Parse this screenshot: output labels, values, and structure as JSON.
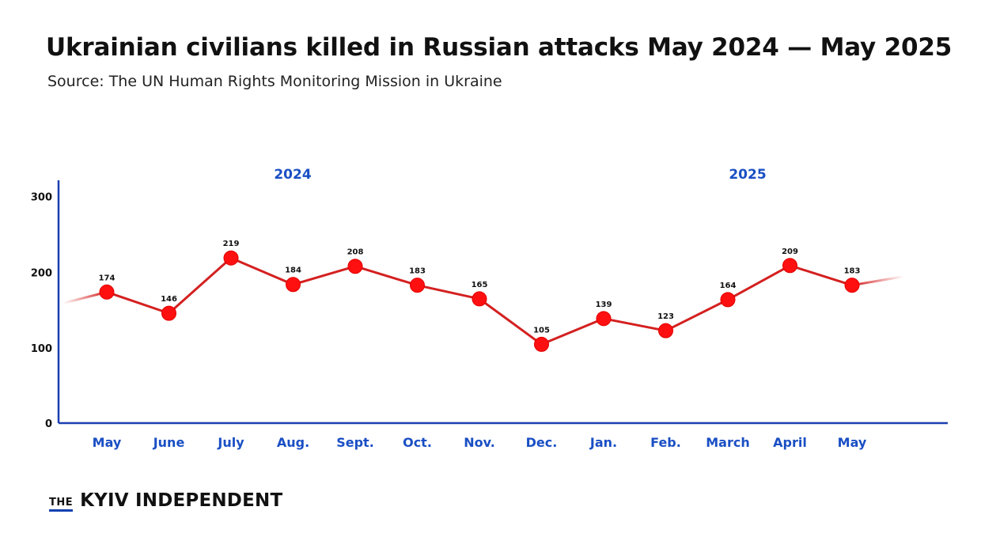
{
  "colors": {
    "line": "#d42020",
    "marker": "#ff1010",
    "axis": "#1a3fb0",
    "month_label": "#1a4fc4",
    "year_label": "#1a4fc4",
    "text": "#111111"
  },
  "chart_data": {
    "type": "line",
    "title": "Ukrainian civilians killed in Russian attacks May 2024 — May 2025",
    "subtitle": "Source: The UN Human Rights Monitoring Mission in Ukraine",
    "ylim": [
      0,
      300
    ],
    "y_ticks": [
      0,
      100,
      200,
      300
    ],
    "categories": [
      "May",
      "June",
      "July",
      "Aug.",
      "Sept.",
      "Oct.",
      "Nov.",
      "Dec.",
      "Jan.",
      "Feb.",
      "March",
      "April",
      "May"
    ],
    "values": [
      174,
      146,
      219,
      184,
      208,
      183,
      165,
      105,
      139,
      123,
      164,
      209,
      183
    ],
    "year_groups": [
      {
        "label": "2024",
        "start": 0,
        "end": 7
      },
      {
        "label": "2025",
        "start": 8,
        "end": 12
      }
    ],
    "grid": false,
    "legend": "none"
  },
  "brand": {
    "the": "THE",
    "name": "KYIV INDEPENDENT"
  }
}
